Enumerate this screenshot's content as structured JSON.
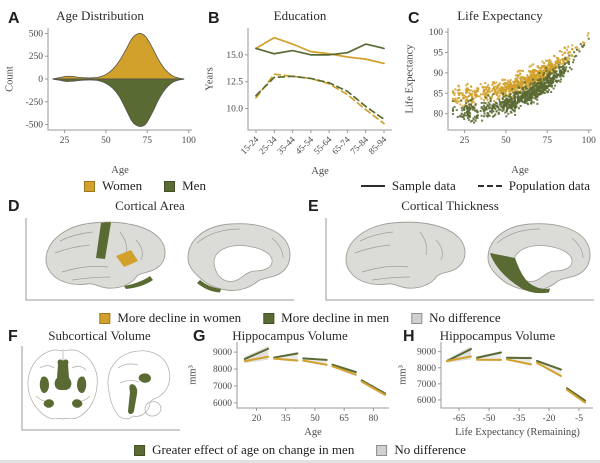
{
  "panels": {
    "A": {
      "letter": "A",
      "title": "Age Distribution",
      "xlabel": "Age",
      "ylabel": "Count"
    },
    "B": {
      "letter": "B",
      "title": "Education",
      "xlabel": "Age",
      "ylabel": "Years"
    },
    "C": {
      "letter": "C",
      "title": "Life Expectancy",
      "xlabel": "Age",
      "ylabel": "Life Expectancy"
    },
    "D": {
      "letter": "D",
      "title": "Cortical Area"
    },
    "E": {
      "letter": "E",
      "title": "Cortical Thickness"
    },
    "F": {
      "letter": "F",
      "title": "Subcortical Volume"
    },
    "G": {
      "letter": "G",
      "title": "Hippocampus Volume",
      "xlabel": "Age",
      "ylabel": "mm³"
    },
    "H": {
      "letter": "H",
      "title": "Hippocampus Volume",
      "xlabel": "Life Expectancy (Remaining)",
      "ylabel": "mm³"
    }
  },
  "legends": {
    "row1": {
      "women": "Women",
      "men": "Men",
      "sample": "Sample data",
      "population": "Population data"
    },
    "row2": {
      "women": "More decline in women",
      "men": "More decline in men",
      "none": "No difference"
    },
    "row3": {
      "men": "Greater effect of age on change in men",
      "none": "No difference"
    }
  },
  "colors": {
    "women": "#D2A12B",
    "men": "#5A6A33",
    "no_difference": "#D0D0D0",
    "band": "#C6C6C6",
    "axis": "#9A9A9A",
    "text": "#4A4A4A",
    "brain_fill": "#DBDBD8",
    "brain_line": "#A09E99",
    "slice_line": "#B8B4AE",
    "white": "#FFFFFF",
    "violin_edge": "#55544A",
    "legend_line": "#2E2E2E"
  },
  "chart_data": [
    {
      "panel": "A",
      "type": "violin",
      "title": "Age Distribution",
      "xlabel": "Age",
      "ylabel": "Count",
      "xlim": [
        15,
        102
      ],
      "ylim": [
        -560,
        560
      ],
      "xticks": [
        "25",
        "50",
        "75",
        "100"
      ],
      "yticks": [
        "500",
        "250",
        "0",
        "-250",
        "-500"
      ],
      "ages": [
        18,
        22,
        26,
        30,
        34,
        38,
        42,
        46,
        50,
        54,
        58,
        62,
        66,
        70,
        74,
        78,
        82,
        86,
        90,
        94,
        97
      ],
      "women_counts": [
        2,
        15,
        30,
        27,
        18,
        13,
        13,
        22,
        50,
        105,
        195,
        320,
        450,
        500,
        465,
        345,
        205,
        100,
        38,
        10,
        2
      ],
      "men_counts": [
        2,
        14,
        27,
        24,
        16,
        12,
        12,
        20,
        48,
        100,
        190,
        330,
        470,
        520,
        495,
        370,
        220,
        108,
        40,
        11,
        2
      ]
    },
    {
      "panel": "B",
      "type": "line",
      "title": "Education",
      "xlabel": "Age",
      "ylabel": "Years",
      "categories": [
        "15-24",
        "25-34",
        "35-44",
        "45-54",
        "55-64",
        "65-74",
        "75-84",
        "85-94"
      ],
      "ylim": [
        8,
        17.5
      ],
      "yticks": [
        "15.0",
        "12.5",
        "10.0"
      ],
      "series": [
        {
          "name": "Women sample data",
          "color": "women",
          "style": "solid",
          "values": [
            15.6,
            16.6,
            16.0,
            15.3,
            15.1,
            14.8,
            14.6,
            14.2
          ]
        },
        {
          "name": "Men sample data",
          "color": "men",
          "style": "solid",
          "values": [
            15.6,
            15.1,
            15.4,
            15.0,
            15.0,
            15.2,
            16.0,
            15.6
          ]
        },
        {
          "name": "Women population data",
          "color": "women",
          "style": "dashed",
          "values": [
            11.0,
            13.2,
            13.0,
            12.8,
            12.3,
            11.3,
            9.9,
            8.6
          ]
        },
        {
          "name": "Men population data",
          "color": "men",
          "style": "dashed",
          "values": [
            11.2,
            12.9,
            13.0,
            12.8,
            12.4,
            11.6,
            10.2,
            9.0
          ]
        }
      ]
    },
    {
      "panel": "C",
      "type": "scatter",
      "title": "Life Expectancy",
      "xlabel": "Age",
      "ylabel": "Life Expectancy",
      "xlim": [
        15,
        102
      ],
      "ylim": [
        76,
        101
      ],
      "xticks": [
        "25",
        "50",
        "75",
        "100"
      ],
      "yticks": [
        "80",
        "85",
        "90",
        "95",
        "100"
      ],
      "series": [
        {
          "name": "Women",
          "color": "women",
          "n": 780,
          "spread": 1.2,
          "trend": [
            [
              18,
              84.3
            ],
            [
              35,
              85.0
            ],
            [
              50,
              86.3
            ],
            [
              65,
              88.3
            ],
            [
              80,
              91.8
            ],
            [
              92,
              95.8
            ],
            [
              100,
              99.0
            ]
          ]
        },
        {
          "name": "Men",
          "color": "men",
          "n": 780,
          "spread": 1.3,
          "trend": [
            [
              18,
              80.0
            ],
            [
              35,
              80.8
            ],
            [
              50,
              82.2
            ],
            [
              65,
              84.8
            ],
            [
              80,
              89.0
            ],
            [
              92,
              94.3
            ],
            [
              100,
              98.2
            ]
          ]
        }
      ]
    },
    {
      "panel": "D",
      "type": "brain_map",
      "title": "Cortical Area",
      "views": [
        "lateral",
        "medial"
      ],
      "highlights": {
        "women": [
          "supramarginal"
        ],
        "men": [
          "central-strip",
          "inferior-temporal",
          "medial-ventral-sliver"
        ]
      }
    },
    {
      "panel": "E",
      "type": "brain_map",
      "title": "Cortical Thickness",
      "views": [
        "lateral",
        "medial"
      ],
      "highlights": {
        "men": [
          "medial-occipital",
          "lingual"
        ]
      }
    },
    {
      "panel": "F",
      "type": "brain_map",
      "title": "Subcortical Volume",
      "views": [
        "coronal",
        "sagittal"
      ],
      "highlights": {
        "men": [
          "thalamus",
          "putamen",
          "hippocampus",
          "brainstem"
        ]
      }
    },
    {
      "panel": "G",
      "type": "segmented_line",
      "title": "Hippocampus Volume",
      "xlabel": "Age",
      "ylabel": "mm³",
      "xlim": [
        10,
        88
      ],
      "ylim": [
        5700,
        9600
      ],
      "xticks": [
        "20",
        "35",
        "50",
        "65",
        "80"
      ],
      "yticks": [
        "9000",
        "8000",
        "7000",
        "6000"
      ],
      "segments": [
        {
          "x": [
            14,
            26
          ],
          "men": [
            8600,
            9200
          ],
          "women": [
            8470,
            8730
          ]
        },
        {
          "x": [
            29,
            41
          ],
          "men": [
            8680,
            8920
          ],
          "women": [
            8620,
            8510
          ]
        },
        {
          "x": [
            44,
            56
          ],
          "men": [
            8630,
            8540
          ],
          "women": [
            8500,
            8260
          ]
        },
        {
          "x": [
            59,
            71
          ],
          "men": [
            8260,
            7820
          ],
          "women": [
            8160,
            7670
          ]
        },
        {
          "x": [
            74,
            86
          ],
          "men": [
            7330,
            6560
          ],
          "women": [
            7260,
            6480
          ]
        }
      ]
    },
    {
      "panel": "H",
      "type": "segmented_line",
      "title": "Hippocampus Volume",
      "xlabel": "Life Expectancy (Remaining)",
      "ylabel": "mm³",
      "xlim": [
        -74,
        2
      ],
      "ylim": [
        5500,
        9600
      ],
      "xticks": [
        "-65",
        "-50",
        "-35",
        "-20",
        "-5"
      ],
      "yticks": [
        "9000",
        "8000",
        "7000",
        "6000"
      ],
      "segments": [
        {
          "x": [
            -71,
            -59
          ],
          "men": [
            8420,
            9160
          ],
          "women": [
            8420,
            8700
          ]
        },
        {
          "x": [
            -56,
            -44
          ],
          "men": [
            8620,
            8950
          ],
          "women": [
            8500,
            8490
          ]
        },
        {
          "x": [
            -41,
            -29
          ],
          "men": [
            8620,
            8600
          ],
          "women": [
            8520,
            8210
          ]
        },
        {
          "x": [
            -26,
            -14
          ],
          "men": [
            8420,
            7890
          ],
          "women": [
            8300,
            7490
          ]
        },
        {
          "x": [
            -11,
            -2
          ],
          "men": [
            6720,
            5960
          ],
          "women": [
            6630,
            5840
          ]
        }
      ]
    }
  ]
}
